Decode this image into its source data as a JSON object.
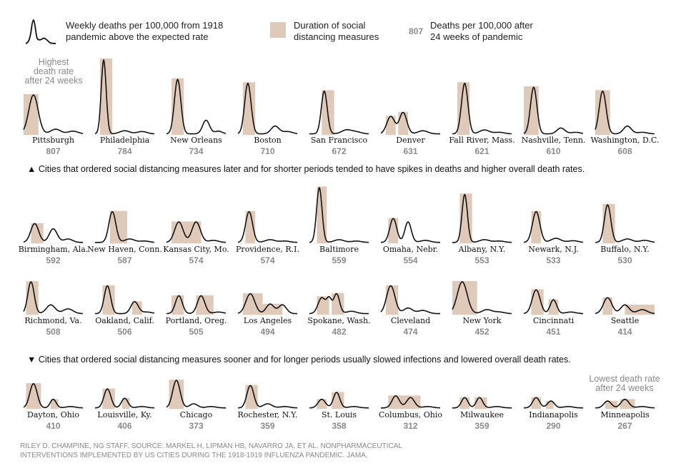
{
  "legend": {
    "curve_line1": "Weekly deaths per 100,000 from 1918",
    "curve_line2": "pandemic above the expected rate",
    "box_line1": "Duration of social",
    "box_line2": "distancing measures",
    "number_sample": "807",
    "number_line1": "Deaths per 100,000 after",
    "number_line2": "24 weeks of pandemic"
  },
  "annotations": {
    "highest_line1": "Highest",
    "highest_line2": "death rate",
    "highest_line3": "after 24 weeks",
    "lowest_line1": "Lowest death rate",
    "lowest_line2": "after 24 weeks"
  },
  "notes": {
    "later": "▲ Cities that ordered social distancing measures later and for shorter periods tended to have spikes in deaths and higher overall death rates.",
    "sooner": "▼ Cities that ordered social distancing measures sooner and for longer periods usually slowed infections and lowered overall death rates."
  },
  "source": {
    "line1": "RILEY D. CHAMPINE, NG STAFF. SOURCE: MARKEL H, LIPMAN HB, NAVARRO JA, ET AL. NONPHARMACEUTICAL",
    "line2": "INTERVENTIONS IMPLEMENTED BY US CITIES DURING THE 1918-1919 INFLUENZA PANDEMIC. JAMA."
  },
  "colors": {
    "curve": "#111111",
    "box": "#dfc9b9",
    "value": "#8a8a8a",
    "annotation": "#8a8a8a"
  },
  "chart_data": {
    "type": "small-multiples line",
    "x_unit": "weeks since start of pandemic",
    "x_range": [
      0,
      24
    ],
    "y_unit": "weekly excess deaths per 100,000",
    "y_range": [
      0,
      20
    ],
    "cities": [
      {
        "name": "Pittsburgh",
        "value": "807",
        "distancing": [
          [
            0,
            6
          ]
        ],
        "peaks": [
          [
            4,
            10,
            1.9
          ],
          [
            13,
            1.2,
            2
          ],
          [
            20,
            0.7,
            2
          ]
        ]
      },
      {
        "name": "Philadelphia",
        "value": "784",
        "distancing": [
          [
            2,
            7
          ]
        ],
        "peaks": [
          [
            3.5,
            19,
            1.0
          ],
          [
            12,
            0.8,
            2
          ],
          [
            19,
            0.6,
            2
          ]
        ]
      },
      {
        "name": "New Orleans",
        "value": "734",
        "distancing": [
          [
            2,
            7
          ]
        ],
        "peaks": [
          [
            4.5,
            14,
            1.3
          ],
          [
            16,
            3.5,
            1.4
          ],
          [
            21,
            0.7,
            1.5
          ]
        ]
      },
      {
        "name": "Boston",
        "value": "710",
        "distancing": [
          [
            2,
            7
          ]
        ],
        "peaks": [
          [
            4,
            13,
            1.3
          ],
          [
            15,
            2.0,
            1.6
          ],
          [
            20,
            0.6,
            2
          ]
        ]
      },
      {
        "name": "San Francisco",
        "value": "672",
        "distancing": [
          [
            5,
            10
          ]
        ],
        "peaks": [
          [
            6,
            11,
            1.2
          ],
          [
            15,
            1.0,
            2
          ],
          [
            19,
            0.5,
            2
          ]
        ]
      },
      {
        "name": "Denver",
        "value": "631",
        "distancing": [
          [
            2,
            6
          ],
          [
            7,
            11
          ]
        ],
        "peaks": [
          [
            4,
            4.5,
            1.6
          ],
          [
            9,
            5.5,
            1.5
          ],
          [
            17,
            0.8,
            2
          ]
        ]
      },
      {
        "name": "Fall River, Mass.",
        "value": "621",
        "distancing": [
          [
            2,
            7
          ]
        ],
        "peaks": [
          [
            5,
            13,
            1.3
          ],
          [
            13,
            1.0,
            2
          ],
          [
            19,
            0.4,
            2
          ]
        ]
      },
      {
        "name": "Nashville, Tenn.",
        "value": "610",
        "distancing": [
          [
            0,
            6
          ]
        ],
        "peaks": [
          [
            4,
            12,
            1.3
          ],
          [
            15,
            1.5,
            1.6
          ],
          [
            21,
            0.4,
            2
          ]
        ]
      },
      {
        "name": "Washington, D.C.",
        "value": "608",
        "distancing": [
          [
            0,
            6
          ]
        ],
        "peaks": [
          [
            3,
            11,
            1.4
          ],
          [
            13,
            2.0,
            1.6
          ],
          [
            19,
            0.4,
            2
          ]
        ]
      },
      {
        "name": "Birmingham, Ala.",
        "value": "592",
        "distancing": [
          [
            3,
            8
          ]
        ],
        "peaks": [
          [
            4.5,
            5.5,
            1.6
          ],
          [
            12,
            4.0,
            1.6
          ],
          [
            18,
            1.0,
            1.8
          ]
        ]
      },
      {
        "name": "New Haven, Conn.",
        "value": "587",
        "distancing": [
          [
            6,
            13
          ]
        ],
        "peaks": [
          [
            7,
            9,
            1.4
          ],
          [
            14,
            1.0,
            2
          ],
          [
            20,
            0.4,
            2
          ]
        ]
      },
      {
        "name": "Kansas City, Mo.",
        "value": "574",
        "distancing": [
          [
            2,
            14
          ]
        ],
        "peaks": [
          [
            5,
            6,
            1.7
          ],
          [
            12,
            6,
            1.7
          ],
          [
            19,
            0.6,
            2
          ]
        ]
      },
      {
        "name": "Providence, R.I.",
        "value": "574",
        "distancing": [
          [
            3,
            7
          ]
        ],
        "peaks": [
          [
            4.5,
            9,
            1.4
          ],
          [
            13,
            0.8,
            2
          ],
          [
            19,
            0.4,
            2
          ]
        ]
      },
      {
        "name": "Baltimore",
        "value": "559",
        "distancing": [
          [
            3,
            7
          ]
        ],
        "peaks": [
          [
            4,
            16,
            1.1
          ],
          [
            12,
            0.8,
            2
          ],
          [
            19,
            0.4,
            2
          ]
        ]
      },
      {
        "name": "Omaha, Nebr.",
        "value": "554",
        "distancing": [
          [
            3,
            7
          ]
        ],
        "peaks": [
          [
            5,
            7,
            1.4
          ],
          [
            11,
            6,
            1.3
          ],
          [
            18,
            0.6,
            2
          ]
        ]
      },
      {
        "name": "Albany, N.Y.",
        "value": "553",
        "distancing": [
          [
            3,
            8
          ]
        ],
        "peaks": [
          [
            5,
            14,
            1.1
          ],
          [
            13,
            0.8,
            2
          ],
          [
            19,
            0.4,
            2
          ]
        ]
      },
      {
        "name": "Newark, N.J.",
        "value": "533",
        "distancing": [
          [
            3,
            7
          ]
        ],
        "peaks": [
          [
            5,
            9,
            1.5
          ],
          [
            13,
            1.2,
            2
          ],
          [
            20,
            0.5,
            2
          ]
        ]
      },
      {
        "name": "Buffalo, N.Y.",
        "value": "530",
        "distancing": [
          [
            3,
            8
          ]
        ],
        "peaks": [
          [
            5,
            11,
            1.3
          ],
          [
            13,
            1.0,
            2
          ],
          [
            20,
            0.6,
            2
          ]
        ]
      },
      {
        "name": "Richmond, Va.",
        "value": "508",
        "distancing": [
          [
            1,
            6
          ]
        ],
        "peaks": [
          [
            3,
            8,
            1.3
          ],
          [
            11,
            2.2,
            1.8
          ],
          [
            18,
            1.2,
            2
          ]
        ]
      },
      {
        "name": "Oakland, Calif.",
        "value": "506",
        "distancing": [
          [
            3,
            8
          ],
          [
            15,
            19
          ]
        ],
        "peaks": [
          [
            5,
            7,
            1.3
          ],
          [
            16,
            3,
            1.5
          ],
          [
            21,
            0.4,
            2
          ]
        ]
      },
      {
        "name": "Portland, Oreg.",
        "value": "505",
        "distancing": [
          [
            2,
            7
          ],
          [
            12,
            19
          ]
        ],
        "peaks": [
          [
            5,
            4.5,
            1.4
          ],
          [
            14,
            4.5,
            1.5
          ],
          [
            21,
            0.4,
            2
          ]
        ]
      },
      {
        "name": "Los Angeles",
        "value": "494",
        "distancing": [
          [
            2,
            10
          ],
          [
            10,
            18
          ]
        ],
        "peaks": [
          [
            5,
            5,
            1.8
          ],
          [
            13,
            2.4,
            1.6
          ],
          [
            18,
            2.2,
            1.6
          ]
        ]
      },
      {
        "name": "Spokane, Wash.",
        "value": "482",
        "distancing": [
          [
            3,
            8
          ],
          [
            9,
            14
          ]
        ],
        "peaks": [
          [
            5,
            4,
            1.5
          ],
          [
            8,
            3.5,
            1.0
          ],
          [
            11,
            5,
            1.2
          ],
          [
            17,
            0.6,
            2
          ]
        ]
      },
      {
        "name": "Cleveland",
        "value": "474",
        "distancing": [
          [
            2,
            7
          ]
        ],
        "peaks": [
          [
            4,
            7,
            1.7
          ],
          [
            11,
            1.4,
            1.8
          ],
          [
            17,
            0.8,
            2
          ]
        ]
      },
      {
        "name": "New York",
        "value": "452",
        "distancing": [
          [
            0,
            10
          ]
        ],
        "peaks": [
          [
            4,
            8,
            2.0
          ],
          [
            14,
            1.0,
            2
          ],
          [
            19,
            0.4,
            2
          ]
        ]
      },
      {
        "name": "Cincinnati",
        "value": "451",
        "distancing": [
          [
            3,
            8
          ],
          [
            10,
            14
          ]
        ],
        "peaks": [
          [
            5,
            6,
            1.6
          ],
          [
            12,
            3.5,
            1.3
          ],
          [
            19,
            0.4,
            2
          ]
        ]
      },
      {
        "name": "Seattle",
        "value": "414",
        "distancing": [
          [
            3,
            7
          ],
          [
            12,
            24
          ]
        ],
        "peaks": [
          [
            5,
            4,
            1.7
          ],
          [
            12,
            2.2,
            1.7
          ],
          [
            19,
            1.0,
            2
          ]
        ]
      },
      {
        "name": "Dayton, Ohio",
        "value": "410",
        "distancing": [
          [
            1,
            7
          ],
          [
            11,
            14
          ]
        ],
        "peaks": [
          [
            4,
            7,
            1.5
          ],
          [
            12,
            2.5,
            1.2
          ],
          [
            19,
            0.4,
            2
          ]
        ]
      },
      {
        "name": "Louisville, Ky.",
        "value": "406",
        "distancing": [
          [
            3,
            8
          ],
          [
            11,
            14
          ]
        ],
        "peaks": [
          [
            5,
            5.5,
            1.4
          ],
          [
            12,
            2.8,
            1.3
          ],
          [
            19,
            0.4,
            2
          ]
        ]
      },
      {
        "name": "Chicago",
        "value": "373",
        "distancing": [
          [
            1,
            7
          ]
        ],
        "peaks": [
          [
            4,
            8,
            1.5
          ],
          [
            11,
            1.2,
            1.6
          ],
          [
            18,
            0.4,
            2
          ]
        ]
      },
      {
        "name": "Rochester, N.Y.",
        "value": "359",
        "distancing": [
          [
            3,
            8
          ]
        ],
        "peaks": [
          [
            5,
            6.5,
            1.4
          ],
          [
            12,
            1.2,
            1.8
          ],
          [
            19,
            0.4,
            2
          ]
        ]
      },
      {
        "name": "St. Louis",
        "value": "358",
        "distancing": [
          [
            3,
            7
          ],
          [
            9,
            14
          ]
        ],
        "peaks": [
          [
            5,
            2.5,
            1.5
          ],
          [
            11,
            4.5,
            1.3
          ],
          [
            18,
            0.4,
            2
          ]
        ]
      },
      {
        "name": "Columbus, Ohio",
        "value": "312",
        "distancing": [
          [
            3,
            16
          ]
        ],
        "peaks": [
          [
            6,
            3.5,
            1.5
          ],
          [
            12,
            3,
            1.6
          ],
          [
            19,
            0.4,
            2
          ]
        ]
      },
      {
        "name": "Milwaukee",
        "value": "359",
        "distancing": [
          [
            3,
            7
          ],
          [
            9,
            14
          ]
        ],
        "peaks": [
          [
            5,
            3,
            1.3
          ],
          [
            11,
            3,
            1.3
          ],
          [
            18,
            0.4,
            2
          ]
        ]
      },
      {
        "name": "Indianapolis",
        "value": "290",
        "distancing": [
          [
            3,
            7
          ],
          [
            9,
            12
          ]
        ],
        "peaks": [
          [
            5,
            3,
            1.4
          ],
          [
            11,
            2,
            1.4
          ],
          [
            18,
            0.4,
            2
          ]
        ]
      },
      {
        "name": "Minneapolis",
        "value": "267",
        "distancing": [
          [
            4,
            9
          ],
          [
            10,
            16
          ]
        ],
        "peaks": [
          [
            5,
            2,
            1.5
          ],
          [
            12,
            2.5,
            1.6
          ],
          [
            19,
            0.4,
            2
          ]
        ]
      }
    ]
  }
}
